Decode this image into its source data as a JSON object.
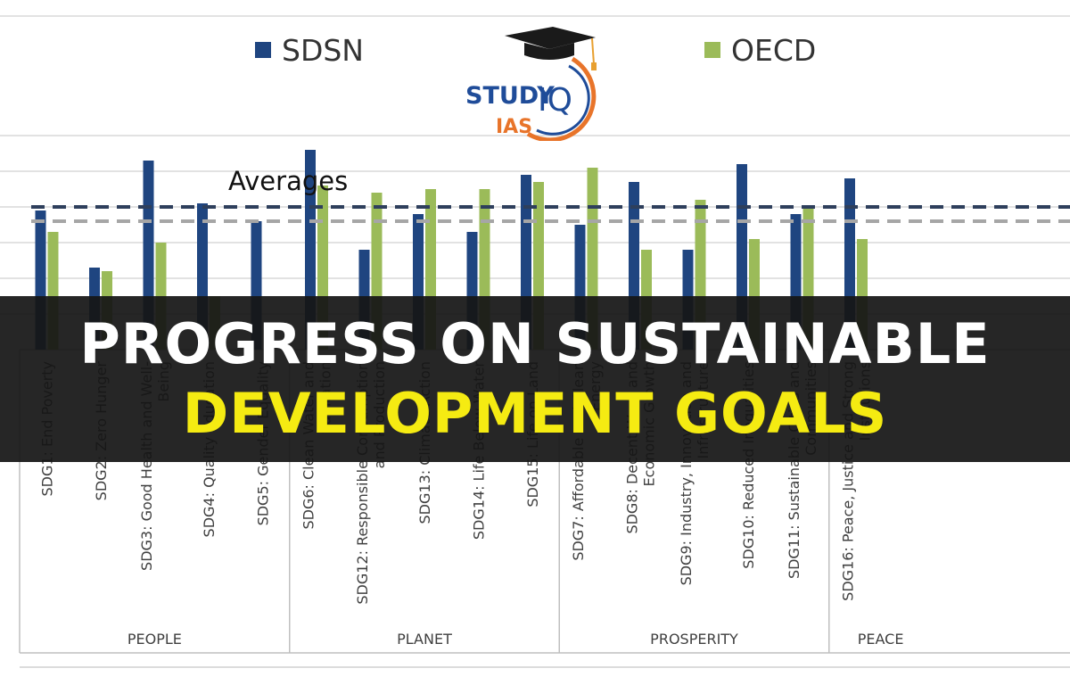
{
  "legend": {
    "sdsn_label": "SDSN",
    "oecd_label": "OECD"
  },
  "logo": {
    "study": "STUDY",
    "iq": "IQ",
    "ias": "IAS"
  },
  "averages_label": "Averages",
  "banner": {
    "line1": "PROGRESS ON SUSTAINABLE",
    "line2": "DEVELOPMENT GOALS"
  },
  "colors": {
    "sdsn": "#1f4580",
    "oecd": "#9bbb59",
    "sdsn_avg": "#2e3f5c",
    "oecd_avg": "#a6a6a6",
    "banner_bg": "#161616",
    "banner_text": "#ffffff",
    "banner_highlight": "#f5eb12",
    "logo_blue": "#1f4c99",
    "logo_orange": "#e8742a"
  },
  "chart_data": {
    "type": "bar",
    "y_axis_range": [
      0,
      6.5
    ],
    "gridlines": "horizontal",
    "legend_position": "top",
    "categories": [
      "SDG1: End Poverty",
      "SDG2: Zero Hunger",
      "SDG3: Good Health and Well-Being",
      "SDG4: Quality Education",
      "SDG5: Gender Equality",
      "SDG6: Clean Water and Sanitation",
      "SDG12: Responsible Consumption and Production",
      "SDG13: Climate Action",
      "SDG14: Life Below Water",
      "SDG15: Life on Land",
      "SDG7: Affordable and Clean Energy",
      "SDG8: Decent Work and Economic Growth",
      "SDG9: Industry, Innovation and Infrastructure",
      "SDG10: Reduced Inequalities",
      "SDG11: Sustainable Cities and Communities",
      "SDG16: Peace, Justice and Strong Institutions"
    ],
    "category_labels": [
      [
        "SDG1: End Poverty"
      ],
      [
        "SDG2: Zero Hunger"
      ],
      [
        "SDG3: Good Health and Well-",
        "Being"
      ],
      [
        "SDG4: Quality Education"
      ],
      [
        "SDG5: Gender Equality"
      ],
      [
        "SDG6: Clean Water and",
        "Sanitation"
      ],
      [
        "SDG12: Responsible Consumption",
        "and Production"
      ],
      [
        "SDG13: Climate Action"
      ],
      [
        "SDG14: Life Below Water"
      ],
      [
        "SDG15: Life on Land"
      ],
      [
        "SDG7: Affordable and Clean",
        "Energy"
      ],
      [
        "SDG8: Decent Work and",
        "Economic Growth"
      ],
      [
        "SDG9: Industry, Innovation and",
        "Infrastructure"
      ],
      [
        "SDG10: Reduced Inequalities"
      ],
      [
        "SDG11: Sustainable Cities and",
        "Communities"
      ],
      [
        "SDG16: Peace, Justice and Strong",
        "Institutions"
      ]
    ],
    "groups": [
      {
        "name": "PEOPLE",
        "categories": [
          0,
          1,
          2,
          3,
          4
        ]
      },
      {
        "name": "PLANET",
        "categories": [
          5,
          6,
          7,
          8,
          9
        ]
      },
      {
        "name": "PROSPERITY",
        "categories": [
          10,
          11,
          12,
          13,
          14
        ]
      },
      {
        "name": "PEACE",
        "categories": [
          15
        ]
      }
    ],
    "series": [
      {
        "name": "SDSN",
        "values": [
          3.9,
          2.3,
          5.3,
          4.1,
          3.6,
          5.6,
          2.8,
          3.8,
          3.3,
          4.9,
          3.5,
          4.7,
          2.8,
          5.2,
          3.8,
          4.8
        ]
      },
      {
        "name": "OECD",
        "values": [
          3.3,
          2.2,
          3.0,
          1.5,
          null,
          4.6,
          4.4,
          4.5,
          4.5,
          4.7,
          5.1,
          2.8,
          4.2,
          3.1,
          4.0,
          3.1
        ]
      }
    ],
    "averages": [
      {
        "series": "SDSN",
        "value": 4.0
      },
      {
        "series": "OECD",
        "value": 3.6
      }
    ]
  }
}
